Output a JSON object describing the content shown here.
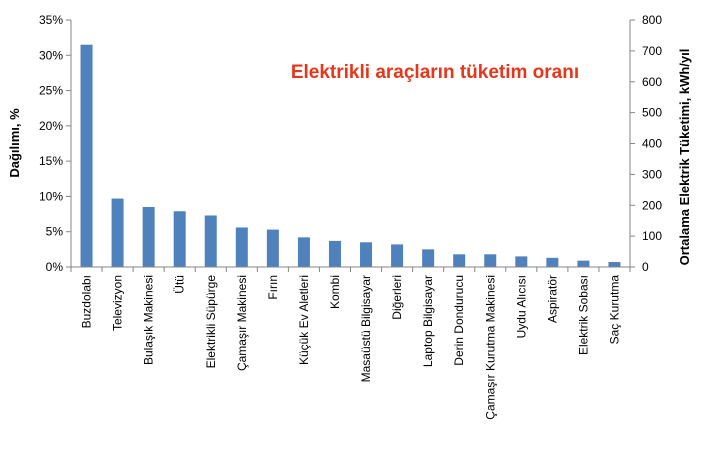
{
  "chart_data": {
    "type": "bar",
    "title": "Elektrikli araçların tüketim oranı",
    "ylabel": "Dağılımı, %",
    "y2label": "Ortalama Elektrik Tüketimi, kWh/yıl",
    "ylim": [
      0,
      35
    ],
    "y2lim": [
      0,
      800
    ],
    "yticks": [
      "0%",
      "5%",
      "10%",
      "15%",
      "20%",
      "25%",
      "30%",
      "35%"
    ],
    "y2ticks": [
      "0",
      "100",
      "200",
      "300",
      "400",
      "500",
      "600",
      "700",
      "800"
    ],
    "grid": false,
    "bar_color": "#4f81bd",
    "title_color": "#e8361b",
    "categories": [
      "Buzdolabı",
      "Televizyon",
      "Bulaşık Makinesi",
      "Ütü",
      "Elektrikli Süpürge",
      "Çamaşır Makinesi",
      "Fırın",
      "Küçük Ev Aletleri",
      "Kombi",
      "Masaüstü Bilgisayar",
      "Diğerleri",
      "Laptop Bilgisayar",
      "Derin Dondurucu",
      "Çamaşır Kurutma Makinesi",
      "Uydu Alıcısı",
      "Aspiratör",
      "Elektrik Sobası",
      "Saç Kurutma"
    ],
    "values": [
      31.5,
      9.7,
      8.5,
      7.9,
      7.3,
      5.6,
      5.3,
      4.2,
      3.7,
      3.5,
      3.2,
      2.5,
      1.8,
      1.8,
      1.5,
      1.3,
      0.9,
      0.7
    ]
  }
}
